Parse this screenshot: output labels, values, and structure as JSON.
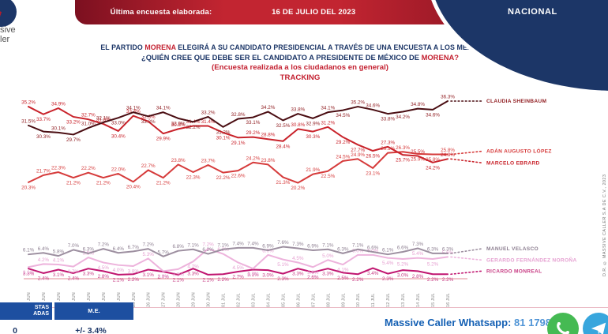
{
  "logo": {
    "fragment_line1": "sive",
    "fragment_line2": "ler"
  },
  "banner": {
    "label": "Última encuesta elaborada:",
    "date": "16 DE JULIO DEL 2023"
  },
  "region_badge": "NACIONAL",
  "title": {
    "line1_pre": "EL PARTIDO ",
    "line1_brand": "MORENA",
    "line1_post": " ELEGIRÁ A SU CANDIDATO PRESIDENCIAL A TRAVÉS DE UNA ENCUESTA A LOS MEXICANOS",
    "line2_pre": "¿QUIÉN CREE QUE DEBE SER EL CANDIDATO A PRESIDENTE DE MÉXICO DE ",
    "line2_brand": "MORENA?",
    "line3": "(Encuesta realizada a los ciudadanos en general)",
    "line4": "TRACKING"
  },
  "chart_data": {
    "type": "line",
    "title": "TRACKING",
    "xlabel": "",
    "ylabel": "",
    "ylim": [
      0,
      40
    ],
    "grid": false,
    "legend_position": "right",
    "x": [
      "18 JUN",
      "19 JUN",
      "20 JUN",
      "21 JUN",
      "22 JUN",
      "23 JUN",
      "24 JUN",
      "25 JUN",
      "26 JUN",
      "27 JUN",
      "28 JUN",
      "29 JUN",
      "30 JUN",
      "01 JUL",
      "02 JUL",
      "03 JUL",
      "04 JUL",
      "05 JUL",
      "06 JUL",
      "07 JUL",
      "08 JUL",
      "09 JUL",
      "10 JUL",
      "11 JUL",
      "12 JUL",
      "13 JUL",
      "14 JUL",
      "15 JUL",
      "16 JUL"
    ],
    "series": [
      {
        "name": "CLAUDIA SHEINBAUM",
        "color": "#4a0d12",
        "label_color": "#8f1b1f",
        "label_side": "auto",
        "legend_dy": 0,
        "values": [
          31.5,
          30.3,
          30.1,
          29.7,
          31.0,
          32.1,
          33.0,
          34.1,
          33.3,
          34.1,
          32.9,
          32.2,
          33.2,
          31.2,
          32.8,
          33.1,
          34.2,
          32.5,
          33.8,
          32.9,
          34.1,
          34.5,
          35.2,
          34.6,
          33.8,
          34.2,
          34.8,
          34.6,
          36.3
        ]
      },
      {
        "name": "ADÁN AUGUSTO LÓPEZ",
        "color": "#d63b3b",
        "label_color": "#d63b3b",
        "label_side": "auto",
        "legend_dy": -4,
        "values": [
          20.3,
          21.7,
          22.3,
          21.2,
          22.2,
          21.2,
          22.0,
          20.4,
          22.7,
          21.2,
          23.8,
          22.3,
          23.7,
          22.2,
          22.6,
          24.2,
          23.8,
          21.3,
          20.2,
          21.9,
          22.5,
          24.5,
          24.9,
          23.1,
          26.1,
          26.3,
          25.9,
          25.8,
          25.8
        ]
      },
      {
        "name": "MARCELO EBRARD",
        "color": "#c9232b",
        "label_color": "#c9232b",
        "label_side": "auto",
        "legend_dy": 5,
        "values": [
          35.2,
          33.7,
          34.9,
          33.2,
          32.7,
          31.8,
          30.4,
          33.4,
          32.3,
          29.9,
          30.8,
          31.4,
          31.4,
          30.1,
          29.1,
          29.2,
          28.8,
          28.4,
          30.8,
          30.3,
          31.2,
          29.2,
          27.7,
          26.5,
          27.3,
          25.7,
          25.5,
          24.2,
          24.9
        ]
      },
      {
        "name": "MANUEL VELASCO",
        "color": "#9d8fa0",
        "label_color": "#8d7f91",
        "label_side": "above",
        "legend_dy": -6,
        "values": [
          6.1,
          6.4,
          5.8,
          7.0,
          6.3,
          7.2,
          6.4,
          6.7,
          7.2,
          5.7,
          6.8,
          7.1,
          6.2,
          7.1,
          7.4,
          7.4,
          6.9,
          7.6,
          7.3,
          6.9,
          7.1,
          6.3,
          7.1,
          6.6,
          6.1,
          6.6,
          7.3,
          6.3,
          6.3
        ]
      },
      {
        "name": "GERARDO FERNÁNDEZ NOROÑA",
        "color": "#edb3dc",
        "label_color": "#e59fd0",
        "label_side": "auto",
        "legend_dy": 4,
        "values": [
          3.6,
          4.2,
          4.1,
          3.7,
          5.5,
          4.5,
          4.0,
          3.8,
          5.3,
          2.8,
          3.2,
          4.7,
          7.2,
          6.2,
          4.5,
          3.3,
          6.0,
          5.1,
          4.5,
          3.6,
          5.0,
          4.1,
          6.0,
          6.0,
          5.4,
          5.2,
          5.4,
          5.2,
          5.6
        ]
      },
      {
        "name": "RICARDO MONREAL",
        "color": "#c01670",
        "label_color": "#c73b83",
        "label_side": "below",
        "legend_dy": -4,
        "values": [
          3.3,
          2.4,
          3.1,
          2.4,
          3.3,
          2.8,
          2.1,
          2.2,
          3.1,
          2.7,
          2.1,
          3.3,
          2.1,
          2.2,
          2.7,
          3.1,
          3.0,
          2.3,
          3.3,
          2.6,
          3.3,
          2.5,
          2.2,
          3.4,
          2.3,
          3.0,
          2.8,
          2.2,
          2.2
        ]
      }
    ]
  },
  "stats_table": {
    "col1_header_line1": "STAS",
    "col1_header_line2": "ADAS",
    "col2_header": "M.E.",
    "col1_value": "0",
    "col2_value": "+/- 3.4%"
  },
  "whatsapp": {
    "label": "Massive Caller Whatsapp:",
    "number": "81 1798 1079"
  },
  "copyright_vertical": "D.R. © MASSIVE CALLER S.A DE C.V., 2023"
}
